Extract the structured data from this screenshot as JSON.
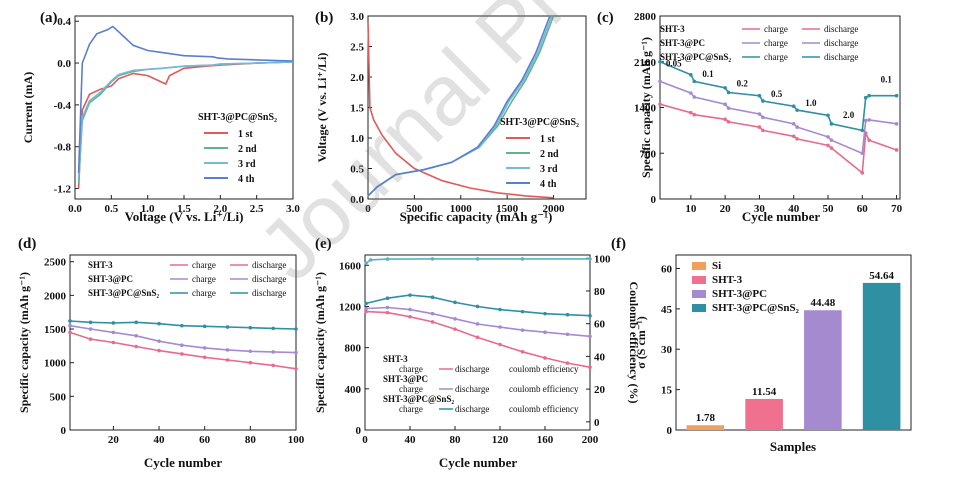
{
  "watermark": "Journal Pre-proof",
  "chart_data": [
    {
      "panel": "(a)",
      "type": "line",
      "xlabel": "Voltage (V vs. Li⁺/Li)",
      "ylabel": "Current (mA)",
      "xlim": [
        0,
        3.0
      ],
      "ylim": [
        -1.3,
        0.45
      ],
      "xticks": [
        "0.0",
        "0.5",
        "1.0",
        "1.5",
        "2.0",
        "2.5",
        "3.0"
      ],
      "yticks": [
        "0.4",
        "0.0",
        "-0.4",
        "-0.8",
        "-1.2"
      ],
      "legend_title": "SHT-3@PC@SnS₂",
      "legend_position": "right-middle",
      "series": [
        {
          "name": "1 st",
          "color": "#e05a5a",
          "x": [
            0.05,
            0.1,
            0.2,
            0.35,
            0.5,
            0.6,
            0.8,
            1.0,
            1.25,
            1.3,
            1.5,
            1.8,
            2.0,
            2.5,
            3.0
          ],
          "y": [
            -1.2,
            -0.45,
            -0.3,
            -0.25,
            -0.22,
            -0.15,
            -0.1,
            -0.12,
            -0.2,
            -0.12,
            -0.05,
            -0.03,
            -0.02,
            0.0,
            0.01
          ]
        },
        {
          "name": "2 nd",
          "color": "#5fb58a",
          "x": [
            0.05,
            0.1,
            0.2,
            0.35,
            0.5,
            0.6,
            0.8,
            1.0,
            1.2,
            1.5,
            1.9,
            2.0,
            2.5,
            3.0
          ],
          "y": [
            -1.15,
            -0.55,
            -0.38,
            -0.3,
            -0.18,
            -0.12,
            -0.08,
            -0.06,
            -0.05,
            -0.03,
            -0.02,
            -0.01,
            0.0,
            0.01
          ]
        },
        {
          "name": "3 rd",
          "color": "#77b8d4",
          "x": [
            0.05,
            0.1,
            0.2,
            0.35,
            0.5,
            0.6,
            0.8,
            1.0,
            1.2,
            1.5,
            1.9,
            2.0,
            2.5,
            3.0
          ],
          "y": [
            -1.1,
            -0.52,
            -0.36,
            -0.28,
            -0.17,
            -0.11,
            -0.07,
            -0.06,
            -0.05,
            -0.03,
            -0.02,
            -0.01,
            0.0,
            0.01
          ]
        },
        {
          "name": "4 th",
          "color": "#5b7fd0",
          "x": [
            0.05,
            0.1,
            0.2,
            0.3,
            0.45,
            0.52,
            0.6,
            0.8,
            1.0,
            1.2,
            1.5,
            1.9,
            1.95,
            2.1,
            2.5,
            3.0
          ],
          "y": [
            -1.05,
            0.0,
            0.18,
            0.28,
            0.32,
            0.35,
            0.3,
            0.17,
            0.12,
            0.1,
            0.07,
            0.06,
            0.05,
            0.04,
            0.03,
            0.02
          ]
        }
      ]
    },
    {
      "panel": "(b)",
      "type": "line",
      "xlabel": "Specific capacity (mAh g⁻¹)",
      "ylabel": "Voltage (V vs. Li⁺/Li)",
      "xlim": [
        0,
        2350
      ],
      "ylim": [
        0,
        3.0
      ],
      "xticks": [
        "0",
        "500",
        "1000",
        "1500",
        "2000"
      ],
      "yticks": [
        "0.0",
        "0.5",
        "1.0",
        "1.5",
        "2.0",
        "2.5",
        "3.0"
      ],
      "legend_title": "SHT-3@PC@SnS₂",
      "legend_position": "right-middle",
      "series": [
        {
          "name": "1 st",
          "color": "#e05a5a",
          "x": [
            0,
            20,
            60,
            150,
            300,
            500,
            800,
            1100,
            1400,
            1700,
            2000
          ],
          "y": [
            2.9,
            1.5,
            1.3,
            1.05,
            0.75,
            0.5,
            0.3,
            0.18,
            0.1,
            0.05,
            0.02
          ]
        },
        {
          "name": "2 nd",
          "color": "#5fb58a",
          "x": [
            0,
            100,
            300,
            600,
            900,
            1200,
            1400,
            1550,
            1700,
            1850,
            2000
          ],
          "y": [
            0.05,
            0.2,
            0.4,
            0.48,
            0.6,
            0.85,
            1.2,
            1.6,
            1.95,
            2.4,
            3.0
          ]
        },
        {
          "name": "3 rd",
          "color": "#77b8d4",
          "x": [
            0,
            100,
            300,
            600,
            900,
            1200,
            1380,
            1520,
            1680,
            1830,
            1980
          ],
          "y": [
            0.05,
            0.2,
            0.4,
            0.48,
            0.6,
            0.85,
            1.2,
            1.6,
            1.95,
            2.4,
            3.0
          ]
        },
        {
          "name": "4 th",
          "color": "#5b7fd0",
          "x": [
            0,
            100,
            300,
            600,
            900,
            1180,
            1360,
            1500,
            1660,
            1810,
            1960
          ],
          "y": [
            0.05,
            0.2,
            0.4,
            0.48,
            0.6,
            0.85,
            1.2,
            1.6,
            1.95,
            2.4,
            3.0
          ]
        }
      ]
    },
    {
      "panel": "(c)",
      "type": "line",
      "xlabel": "Cycle number",
      "ylabel": "Specific capacity (mAh g⁻¹)",
      "xlim": [
        1,
        71
      ],
      "ylim": [
        0,
        2800
      ],
      "xticks": [
        "10",
        "20",
        "30",
        "40",
        "50",
        "60",
        "70"
      ],
      "yticks": [
        "0",
        "700",
        "1400",
        "2100",
        "2800"
      ],
      "rate_labels": [
        "0.05",
        "0.1",
        "0.2",
        "0.5",
        "1.0",
        "2.0",
        "0.1"
      ],
      "legend_position": "top-left",
      "legend_labels": {
        "charge": "charge",
        "discharge": "discharge"
      },
      "series": [
        {
          "name": "SHT-3",
          "color": "#e76b8f",
          "x": [
            1,
            10,
            11,
            20,
            21,
            30,
            31,
            40,
            41,
            50,
            51,
            60,
            61,
            62,
            70
          ],
          "y": [
            1450,
            1320,
            1290,
            1220,
            1180,
            1100,
            1050,
            960,
            920,
            820,
            780,
            400,
            1010,
            900,
            750
          ]
        },
        {
          "name": "SHT-3@PC",
          "color": "#a58ad0",
          "x": [
            1,
            10,
            11,
            20,
            21,
            30,
            31,
            40,
            41,
            50,
            51,
            60,
            61,
            62,
            70
          ],
          "y": [
            1800,
            1620,
            1560,
            1450,
            1390,
            1300,
            1250,
            1150,
            1100,
            950,
            900,
            700,
            1200,
            1210,
            1150
          ]
        },
        {
          "name": "SHT-3@PC@SnS₂",
          "color": "#2f8fa3",
          "x": [
            1,
            10,
            11,
            20,
            21,
            30,
            31,
            40,
            41,
            50,
            51,
            60,
            61,
            62,
            70
          ],
          "y": [
            2100,
            1900,
            1800,
            1700,
            1630,
            1580,
            1500,
            1420,
            1360,
            1280,
            1150,
            1050,
            1550,
            1580,
            1580
          ]
        }
      ]
    },
    {
      "panel": "(d)",
      "type": "line",
      "xlabel": "Cycle number",
      "ylabel": "Specific capacity (mAh g⁻¹)",
      "xlim": [
        1,
        100
      ],
      "ylim": [
        0,
        2600
      ],
      "xticks": [
        "20",
        "40",
        "60",
        "80",
        "100"
      ],
      "yticks": [
        "0",
        "500",
        "1000",
        "1500",
        "2000",
        "2500"
      ],
      "legend_position": "top-left",
      "legend_labels": {
        "charge": "charge",
        "discharge": "discharge"
      },
      "series": [
        {
          "name": "SHT-3",
          "color": "#e76b8f",
          "x": [
            1,
            10,
            20,
            30,
            40,
            50,
            60,
            70,
            80,
            90,
            100
          ],
          "y": [
            1450,
            1350,
            1300,
            1240,
            1180,
            1130,
            1080,
            1040,
            1000,
            960,
            910
          ]
        },
        {
          "name": "SHT-3@PC",
          "color": "#a58ad0",
          "x": [
            1,
            10,
            20,
            30,
            40,
            50,
            60,
            70,
            80,
            90,
            100
          ],
          "y": [
            1550,
            1500,
            1450,
            1400,
            1320,
            1260,
            1220,
            1190,
            1170,
            1160,
            1150
          ]
        },
        {
          "name": "SHT-3@PC@SnS₂",
          "color": "#2f8fa3",
          "x": [
            1,
            10,
            20,
            30,
            40,
            50,
            60,
            70,
            80,
            90,
            100
          ],
          "y": [
            1620,
            1600,
            1590,
            1600,
            1580,
            1550,
            1540,
            1530,
            1520,
            1510,
            1500
          ]
        }
      ]
    },
    {
      "panel": "(e)",
      "type": "line",
      "xlabel": "Cycle number",
      "ylabel": "Specific capacity (mAh g⁻¹)",
      "y2label": "Coulomb efficiency (%)",
      "xlim": [
        0,
        200
      ],
      "ylim": [
        0,
        1700
      ],
      "y2lim": [
        -5,
        102
      ],
      "xticks": [
        "0",
        "40",
        "80",
        "120",
        "160",
        "200"
      ],
      "yticks": [
        "0",
        "400",
        "800",
        "1200",
        "1600"
      ],
      "y2ticks": [
        "0",
        "20",
        "40",
        "60",
        "80",
        "100"
      ],
      "legend_position": "bottom-left",
      "legend_labels": {
        "charge": "charge",
        "discharge": "discharge",
        "ce": "coulomb efficiency"
      },
      "series": [
        {
          "name": "SHT-3",
          "color": "#e76b8f",
          "x": [
            1,
            20,
            40,
            60,
            80,
            100,
            120,
            140,
            160,
            180,
            200
          ],
          "y": [
            1150,
            1140,
            1100,
            1050,
            980,
            900,
            830,
            760,
            700,
            650,
            610
          ]
        },
        {
          "name": "SHT-3@PC",
          "color": "#a58ad0",
          "x": [
            1,
            20,
            40,
            60,
            80,
            100,
            120,
            140,
            160,
            180,
            200
          ],
          "y": [
            1180,
            1190,
            1170,
            1130,
            1080,
            1030,
            1000,
            970,
            950,
            930,
            910
          ]
        },
        {
          "name": "SHT-3@PC@SnS₂",
          "color": "#2f8fa3",
          "x": [
            1,
            20,
            40,
            60,
            80,
            100,
            120,
            140,
            160,
            180,
            200
          ],
          "y": [
            1230,
            1280,
            1310,
            1290,
            1240,
            1200,
            1170,
            1150,
            1130,
            1120,
            1110
          ]
        },
        {
          "name": "coulomb efficiency",
          "color": "#5ab3c4",
          "axis": "y2",
          "x": [
            1,
            5,
            20,
            60,
            100,
            140,
            200
          ],
          "y": [
            97,
            99,
            99.5,
            99.6,
            99.6,
            99.6,
            99.6
          ]
        }
      ]
    },
    {
      "panel": "(f)",
      "type": "bar",
      "xlabel": "Samples",
      "ylabel": "σ (S cm⁻¹)",
      "ylim": [
        0,
        65
      ],
      "yticks": [
        "0",
        "15",
        "30",
        "45",
        "60"
      ],
      "legend_position": "top-left",
      "categories": [
        "Si",
        "SHT-3",
        "SHT-3@PC",
        "SHT-3@PC@SnS₂"
      ],
      "values": [
        1.78,
        11.54,
        44.48,
        54.64
      ],
      "labels": [
        "1.78",
        "11.54",
        "44.48",
        "54.64"
      ],
      "colors": [
        "#f0a05a",
        "#f07090",
        "#a58ad0",
        "#2f8fa3"
      ]
    }
  ]
}
